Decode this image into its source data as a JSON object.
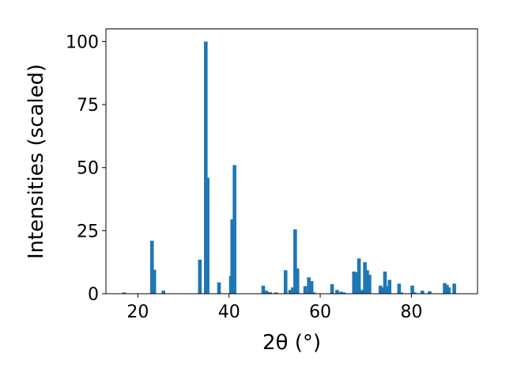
{
  "chart_data": {
    "type": "bar",
    "title": "",
    "xlabel": "2θ (°)",
    "ylabel": "Intensities (scaled)",
    "xlim": [
      13,
      94.5
    ],
    "ylim": [
      0,
      105
    ],
    "xticks": [
      20,
      40,
      60,
      80
    ],
    "yticks": [
      0,
      25,
      50,
      75,
      100
    ],
    "grid": false,
    "bar_color": "#1f77b4",
    "bar_width": 0.8,
    "series": [
      {
        "x": [
          17.0,
          23.1,
          23.6,
          25.6,
          33.6,
          34.9,
          35.3,
          37.8,
          40.4,
          40.7,
          41.2,
          47.5,
          48.2,
          49.0,
          50.3,
          52.4,
          53.4,
          54.0,
          54.5,
          55.0,
          56.7,
          57.5,
          58.1,
          58.6,
          62.6,
          63.7,
          64.6,
          65.2,
          67.4,
          68.0,
          68.5,
          69.1,
          69.8,
          70.3,
          70.8,
          73.2,
          73.7,
          74.2,
          74.7,
          75.2,
          77.3,
          77.8,
          80.2,
          80.7,
          82.4,
          84.0,
          87.3,
          87.8,
          88.2,
          89.4
        ],
        "values": [
          0.5,
          21,
          9.5,
          1.2,
          13.5,
          100,
          46,
          4.5,
          7,
          29.5,
          51,
          3.2,
          1.2,
          0.6,
          0.5,
          9.3,
          1.5,
          2.5,
          25.5,
          10,
          3,
          6.5,
          5,
          0.5,
          3.8,
          1.5,
          0.8,
          0.5,
          8.8,
          8.5,
          14,
          1.5,
          12.5,
          9.3,
          7.5,
          3.2,
          2.5,
          8.8,
          3,
          5.5,
          4,
          0.5,
          3.2,
          0.5,
          1.2,
          1,
          4.2,
          3.5,
          2.5,
          4
        ]
      }
    ]
  }
}
